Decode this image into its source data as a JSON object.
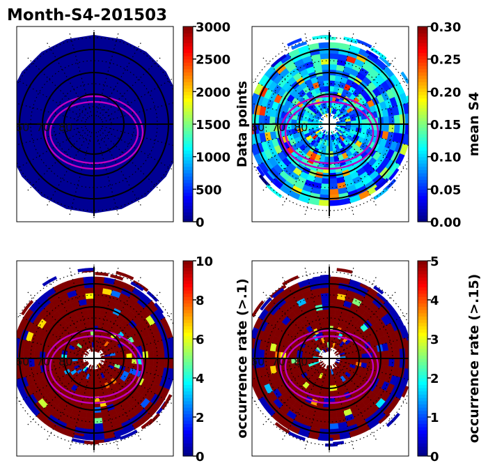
{
  "figure_title": "Month-S4-201503",
  "chart_data": [
    {
      "type": "heatmap",
      "projection": "polar",
      "panel": "top-left",
      "colorbar": {
        "label": "Data points",
        "min": 0,
        "max": 3000,
        "ticks": [
          "0",
          "500",
          "1000",
          "1500",
          "2000",
          "2500",
          "3000"
        ]
      },
      "latitude_labels": [
        "60",
        "70",
        "80"
      ],
      "pattern": "uniform",
      "level": 0.02
    },
    {
      "type": "heatmap",
      "projection": "polar",
      "panel": "top-right",
      "colorbar": {
        "label": "mean S4",
        "min": 0,
        "max": 0.3,
        "ticks": [
          "0.00",
          "0.05",
          "0.10",
          "0.15",
          "0.20",
          "0.25",
          "0.30"
        ]
      },
      "latitude_labels": [
        "60",
        "70",
        "80"
      ],
      "pattern": "speckled",
      "level": 0.3
    },
    {
      "type": "heatmap",
      "projection": "polar",
      "panel": "bottom-left",
      "colorbar": {
        "label": "occurrence rate (>.1)",
        "min": 0,
        "max": 10,
        "ticks": [
          "0",
          "2",
          "4",
          "6",
          "8",
          "10"
        ]
      },
      "latitude_labels": [
        "60",
        "70",
        "80"
      ],
      "pattern": "saturated",
      "level": 1.0
    },
    {
      "type": "heatmap",
      "projection": "polar",
      "panel": "bottom-right",
      "colorbar": {
        "label": "occurrence rate (>.15)",
        "min": 0,
        "max": 5,
        "ticks": [
          "0",
          "1",
          "2",
          "3",
          "4",
          "5"
        ]
      },
      "latitude_labels": [
        "60",
        "70",
        "80"
      ],
      "pattern": "saturated",
      "level": 0.95
    }
  ]
}
